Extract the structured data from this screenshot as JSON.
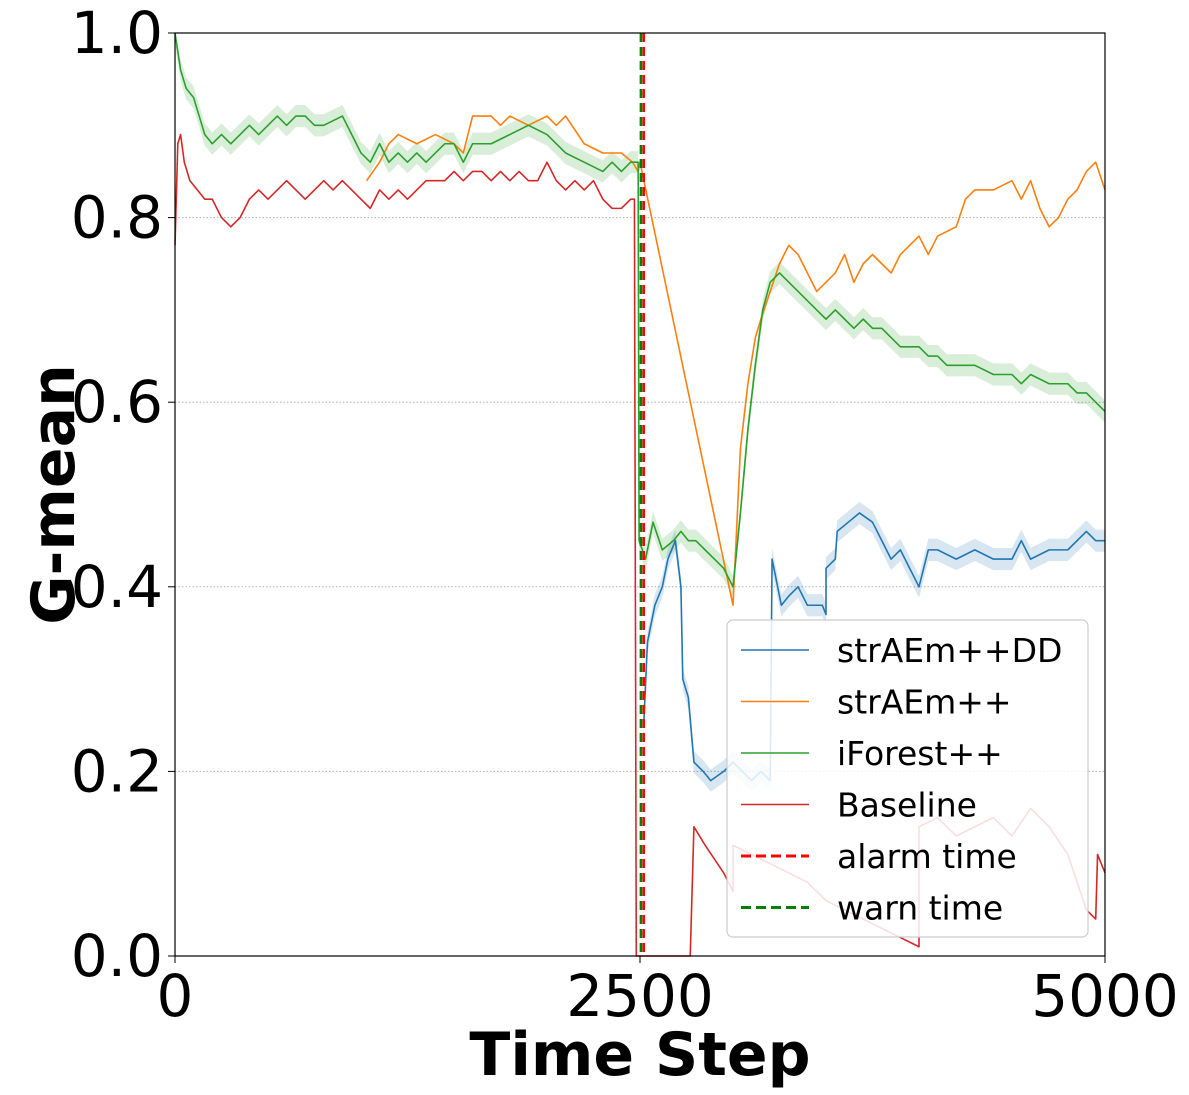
{
  "chart_data": {
    "type": "line",
    "xlabel": "Time Step",
    "ylabel": "G-mean",
    "xlim": [
      0,
      5000
    ],
    "ylim": [
      0,
      1
    ],
    "xticks": [
      0,
      2500,
      5000
    ],
    "xtick_labels": [
      "0",
      "2500",
      "5000"
    ],
    "yticks": [
      0,
      0.2,
      0.4,
      0.6,
      0.8,
      1.0
    ],
    "ytick_labels": [
      "0.0",
      "0.2",
      "0.4",
      "0.6",
      "0.8",
      "1.0"
    ],
    "grid": "horizontal dotted",
    "legend_position": "lower-right",
    "series": [
      {
        "name": "strAEm++DD",
        "color": "#1f77b4",
        "band": true,
        "points": [
          [
            2520,
            0.25
          ],
          [
            2540,
            0.34
          ],
          [
            2580,
            0.38
          ],
          [
            2620,
            0.4
          ],
          [
            2650,
            0.43
          ],
          [
            2690,
            0.45
          ],
          [
            2720,
            0.4
          ],
          [
            2730,
            0.3
          ],
          [
            2760,
            0.28
          ],
          [
            2790,
            0.21
          ],
          [
            2840,
            0.2
          ],
          [
            2880,
            0.19
          ],
          [
            2950,
            0.2
          ],
          [
            3000,
            0.21
          ],
          [
            3050,
            0.2
          ],
          [
            3100,
            0.19
          ],
          [
            3150,
            0.2
          ],
          [
            3200,
            0.19
          ],
          [
            3210,
            0.43
          ],
          [
            3260,
            0.38
          ],
          [
            3300,
            0.39
          ],
          [
            3350,
            0.4
          ],
          [
            3400,
            0.38
          ],
          [
            3450,
            0.38
          ],
          [
            3480,
            0.38
          ],
          [
            3500,
            0.37
          ],
          [
            3500,
            0.42
          ],
          [
            3550,
            0.43
          ],
          [
            3560,
            0.46
          ],
          [
            3620,
            0.47
          ],
          [
            3680,
            0.48
          ],
          [
            3750,
            0.47
          ],
          [
            3800,
            0.45
          ],
          [
            3850,
            0.43
          ],
          [
            3900,
            0.44
          ],
          [
            3950,
            0.42
          ],
          [
            4000,
            0.4
          ],
          [
            4050,
            0.44
          ],
          [
            4100,
            0.44
          ],
          [
            4200,
            0.43
          ],
          [
            4300,
            0.44
          ],
          [
            4400,
            0.43
          ],
          [
            4500,
            0.43
          ],
          [
            4550,
            0.45
          ],
          [
            4600,
            0.43
          ],
          [
            4700,
            0.44
          ],
          [
            4800,
            0.44
          ],
          [
            4900,
            0.46
          ],
          [
            4950,
            0.45
          ],
          [
            5000,
            0.45
          ]
        ]
      },
      {
        "name": "strAEm++",
        "color": "#ff7f0e",
        "points": [
          [
            1030,
            0.84
          ],
          [
            1100,
            0.86
          ],
          [
            1150,
            0.88
          ],
          [
            1200,
            0.89
          ],
          [
            1300,
            0.88
          ],
          [
            1400,
            0.89
          ],
          [
            1500,
            0.88
          ],
          [
            1550,
            0.87
          ],
          [
            1600,
            0.91
          ],
          [
            1700,
            0.91
          ],
          [
            1750,
            0.9
          ],
          [
            1800,
            0.91
          ],
          [
            1900,
            0.9
          ],
          [
            2000,
            0.91
          ],
          [
            2050,
            0.9
          ],
          [
            2100,
            0.91
          ],
          [
            2200,
            0.88
          ],
          [
            2300,
            0.87
          ],
          [
            2400,
            0.87
          ],
          [
            2460,
            0.86
          ],
          [
            2490,
            0.85
          ],
          [
            2500,
            0.86
          ],
          [
            3000,
            0.38
          ],
          [
            3040,
            0.55
          ],
          [
            3080,
            0.62
          ],
          [
            3120,
            0.67
          ],
          [
            3150,
            0.69
          ],
          [
            3200,
            0.72
          ],
          [
            3250,
            0.75
          ],
          [
            3300,
            0.77
          ],
          [
            3350,
            0.76
          ],
          [
            3400,
            0.74
          ],
          [
            3450,
            0.72
          ],
          [
            3500,
            0.73
          ],
          [
            3550,
            0.74
          ],
          [
            3600,
            0.76
          ],
          [
            3650,
            0.73
          ],
          [
            3700,
            0.75
          ],
          [
            3750,
            0.76
          ],
          [
            3800,
            0.75
          ],
          [
            3850,
            0.74
          ],
          [
            3900,
            0.76
          ],
          [
            4000,
            0.78
          ],
          [
            4050,
            0.76
          ],
          [
            4100,
            0.78
          ],
          [
            4200,
            0.79
          ],
          [
            4250,
            0.82
          ],
          [
            4300,
            0.83
          ],
          [
            4400,
            0.83
          ],
          [
            4500,
            0.84
          ],
          [
            4550,
            0.82
          ],
          [
            4600,
            0.84
          ],
          [
            4650,
            0.81
          ],
          [
            4700,
            0.79
          ],
          [
            4750,
            0.8
          ],
          [
            4800,
            0.82
          ],
          [
            4850,
            0.83
          ],
          [
            4900,
            0.85
          ],
          [
            4950,
            0.86
          ],
          [
            5000,
            0.83
          ]
        ]
      },
      {
        "name": "iForest++",
        "color": "#2ca02c",
        "band": true,
        "points": [
          [
            0,
            1.0
          ],
          [
            30,
            0.96
          ],
          [
            60,
            0.94
          ],
          [
            100,
            0.93
          ],
          [
            130,
            0.91
          ],
          [
            160,
            0.89
          ],
          [
            200,
            0.88
          ],
          [
            250,
            0.89
          ],
          [
            300,
            0.88
          ],
          [
            350,
            0.89
          ],
          [
            400,
            0.9
          ],
          [
            450,
            0.89
          ],
          [
            500,
            0.9
          ],
          [
            550,
            0.91
          ],
          [
            600,
            0.9
          ],
          [
            650,
            0.91
          ],
          [
            700,
            0.91
          ],
          [
            750,
            0.9
          ],
          [
            800,
            0.9
          ],
          [
            900,
            0.91
          ],
          [
            950,
            0.89
          ],
          [
            1000,
            0.87
          ],
          [
            1050,
            0.86
          ],
          [
            1100,
            0.88
          ],
          [
            1150,
            0.86
          ],
          [
            1200,
            0.87
          ],
          [
            1250,
            0.86
          ],
          [
            1300,
            0.87
          ],
          [
            1350,
            0.86
          ],
          [
            1400,
            0.87
          ],
          [
            1450,
            0.88
          ],
          [
            1500,
            0.88
          ],
          [
            1550,
            0.86
          ],
          [
            1600,
            0.88
          ],
          [
            1700,
            0.88
          ],
          [
            1800,
            0.89
          ],
          [
            1900,
            0.9
          ],
          [
            2000,
            0.89
          ],
          [
            2100,
            0.87
          ],
          [
            2200,
            0.86
          ],
          [
            2300,
            0.85
          ],
          [
            2350,
            0.86
          ],
          [
            2400,
            0.85
          ],
          [
            2450,
            0.86
          ],
          [
            2490,
            0.86
          ],
          [
            2495,
            0.45
          ],
          [
            2530,
            0.43
          ],
          [
            2570,
            0.47
          ],
          [
            2620,
            0.44
          ],
          [
            2680,
            0.45
          ],
          [
            2720,
            0.46
          ],
          [
            2760,
            0.45
          ],
          [
            2800,
            0.45
          ],
          [
            2850,
            0.44
          ],
          [
            2900,
            0.43
          ],
          [
            2950,
            0.42
          ],
          [
            3000,
            0.4
          ],
          [
            3040,
            0.48
          ],
          [
            3080,
            0.57
          ],
          [
            3120,
            0.64
          ],
          [
            3160,
            0.7
          ],
          [
            3200,
            0.73
          ],
          [
            3250,
            0.74
          ],
          [
            3300,
            0.73
          ],
          [
            3350,
            0.72
          ],
          [
            3400,
            0.71
          ],
          [
            3450,
            0.7
          ],
          [
            3500,
            0.69
          ],
          [
            3550,
            0.7
          ],
          [
            3600,
            0.69
          ],
          [
            3650,
            0.68
          ],
          [
            3700,
            0.69
          ],
          [
            3750,
            0.68
          ],
          [
            3800,
            0.68
          ],
          [
            3850,
            0.67
          ],
          [
            3900,
            0.66
          ],
          [
            3950,
            0.66
          ],
          [
            4000,
            0.66
          ],
          [
            4050,
            0.65
          ],
          [
            4100,
            0.65
          ],
          [
            4150,
            0.64
          ],
          [
            4200,
            0.64
          ],
          [
            4300,
            0.64
          ],
          [
            4400,
            0.63
          ],
          [
            4500,
            0.63
          ],
          [
            4550,
            0.62
          ],
          [
            4600,
            0.63
          ],
          [
            4700,
            0.62
          ],
          [
            4750,
            0.62
          ],
          [
            4800,
            0.62
          ],
          [
            4850,
            0.61
          ],
          [
            4900,
            0.61
          ],
          [
            4950,
            0.6
          ],
          [
            5000,
            0.59
          ]
        ]
      },
      {
        "name": "Baseline",
        "color": "#d62728",
        "points": [
          [
            0,
            0.77
          ],
          [
            15,
            0.88
          ],
          [
            30,
            0.89
          ],
          [
            50,
            0.86
          ],
          [
            80,
            0.84
          ],
          [
            120,
            0.83
          ],
          [
            160,
            0.82
          ],
          [
            200,
            0.82
          ],
          [
            250,
            0.8
          ],
          [
            300,
            0.79
          ],
          [
            350,
            0.8
          ],
          [
            400,
            0.82
          ],
          [
            450,
            0.83
          ],
          [
            500,
            0.82
          ],
          [
            550,
            0.83
          ],
          [
            600,
            0.84
          ],
          [
            650,
            0.83
          ],
          [
            700,
            0.82
          ],
          [
            750,
            0.83
          ],
          [
            800,
            0.84
          ],
          [
            850,
            0.83
          ],
          [
            900,
            0.84
          ],
          [
            950,
            0.83
          ],
          [
            1000,
            0.82
          ],
          [
            1050,
            0.81
          ],
          [
            1100,
            0.83
          ],
          [
            1150,
            0.82
          ],
          [
            1200,
            0.83
          ],
          [
            1250,
            0.82
          ],
          [
            1300,
            0.83
          ],
          [
            1350,
            0.84
          ],
          [
            1400,
            0.84
          ],
          [
            1450,
            0.84
          ],
          [
            1500,
            0.85
          ],
          [
            1550,
            0.84
          ],
          [
            1600,
            0.85
          ],
          [
            1650,
            0.85
          ],
          [
            1700,
            0.84
          ],
          [
            1750,
            0.85
          ],
          [
            1800,
            0.84
          ],
          [
            1850,
            0.85
          ],
          [
            1900,
            0.84
          ],
          [
            1950,
            0.84
          ],
          [
            2000,
            0.86
          ],
          [
            2050,
            0.84
          ],
          [
            2100,
            0.83
          ],
          [
            2150,
            0.84
          ],
          [
            2200,
            0.83
          ],
          [
            2250,
            0.84
          ],
          [
            2300,
            0.82
          ],
          [
            2350,
            0.81
          ],
          [
            2400,
            0.81
          ],
          [
            2450,
            0.82
          ],
          [
            2470,
            0.82
          ],
          [
            2480,
            0.0
          ],
          [
            2770,
            0.0
          ],
          [
            2790,
            0.14
          ],
          [
            2850,
            0.12
          ],
          [
            2950,
            0.09
          ],
          [
            3000,
            0.07
          ],
          [
            3000,
            0.12
          ],
          [
            3100,
            0.11
          ],
          [
            3200,
            0.1
          ],
          [
            3300,
            0.09
          ],
          [
            3400,
            0.08
          ],
          [
            3500,
            0.06
          ],
          [
            3600,
            0.05
          ],
          [
            3700,
            0.04
          ],
          [
            3800,
            0.03
          ],
          [
            3900,
            0.02
          ],
          [
            4000,
            0.01
          ],
          [
            4000,
            0.14
          ],
          [
            4100,
            0.15
          ],
          [
            4200,
            0.13
          ],
          [
            4300,
            0.14
          ],
          [
            4400,
            0.15
          ],
          [
            4500,
            0.13
          ],
          [
            4600,
            0.16
          ],
          [
            4700,
            0.14
          ],
          [
            4800,
            0.11
          ],
          [
            4850,
            0.08
          ],
          [
            4900,
            0.05
          ],
          [
            4950,
            0.04
          ],
          [
            4960,
            0.11
          ],
          [
            5000,
            0.09
          ]
        ]
      },
      {
        "name": "alarm time",
        "color": "#ff0000",
        "style": "dashed",
        "x": 2520
      },
      {
        "name": "warn time",
        "color": "#008000",
        "style": "dashed",
        "x": 2505
      }
    ]
  }
}
